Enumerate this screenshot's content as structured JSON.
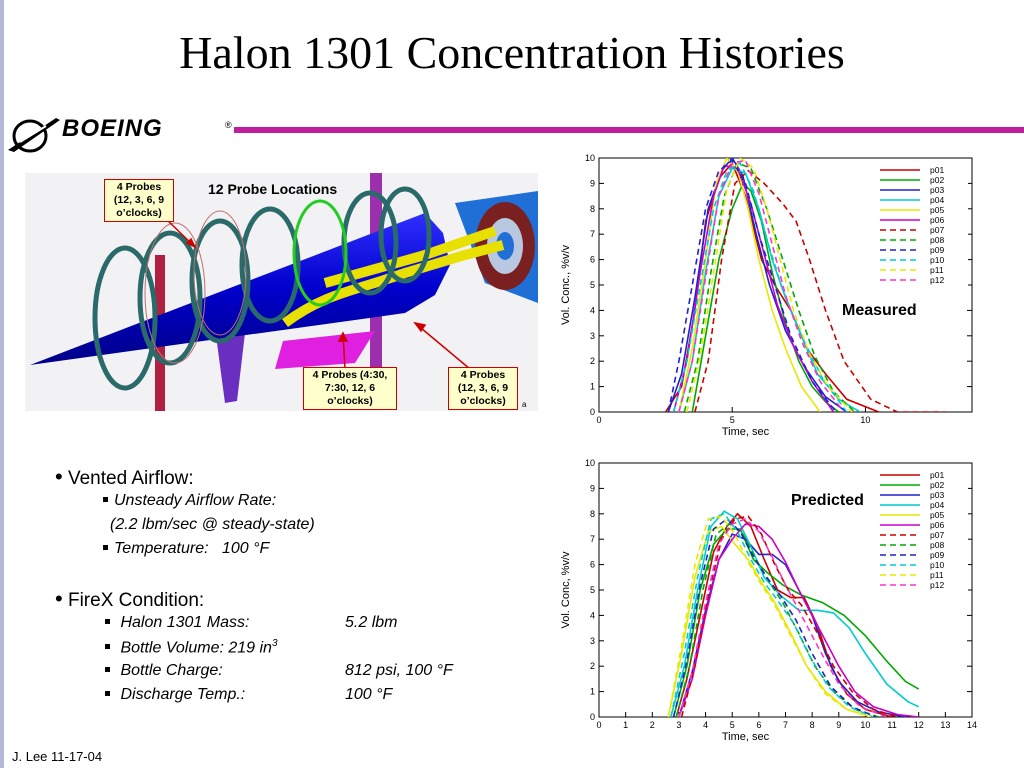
{
  "slide": {
    "title": "Halon 1301 Concentration Histories",
    "logo_text": "BOEING",
    "logo_reg": "®",
    "footer": "J. Lee 11-17-04"
  },
  "probe_figure": {
    "heading": "12 Probe Locations",
    "callouts": [
      "4 Probes (12, 3, 6, 9 o’clocks)",
      "4 Probes (4:30, 7:30, 12, 6 o’clocks)",
      "4 Probes (12, 3, 6, 9 o’clocks)"
    ],
    "corner_mark": "a"
  },
  "bullets": {
    "vented": {
      "label": "Vented Airflow:",
      "rate_label": "Unsteady Airflow Rate:",
      "rate_note": "(2.2 lbm/sec @ steady-state)",
      "temp_label": "Temperature:",
      "temp_value": "100 °F"
    },
    "firex": {
      "label": "FireX Condition:",
      "items": [
        {
          "label": "Halon 1301 Mass:",
          "value": "5.2 lbm"
        },
        {
          "label": "Bottle Volume: 219 in",
          "sup": "3",
          "value": ""
        },
        {
          "label": "Bottle Charge:",
          "value": "812 psi, 100 °F"
        },
        {
          "label": "Discharge Temp.:",
          "value": "100 °F"
        }
      ]
    }
  },
  "chart_data": [
    {
      "type": "line",
      "annotation": "Measured",
      "xlabel": "Time, sec",
      "ylabel": "Vol. Conc., %v/v",
      "xlim": [
        0,
        14
      ],
      "ylim": [
        0,
        10
      ],
      "xticks": [
        0,
        5,
        10
      ],
      "yticks": [
        0,
        1,
        2,
        3,
        4,
        5,
        6,
        7,
        8,
        9,
        10
      ],
      "legend_position": "top-right",
      "series": [
        {
          "name": "p01",
          "color": "#cc0000",
          "dash": "solid",
          "x": [
            2.5,
            3.1,
            3.6,
            4.0,
            4.5,
            5.0,
            5.5,
            6.1,
            6.6,
            7.2,
            7.8,
            8.5,
            9.3,
            10.5
          ],
          "y": [
            0,
            1,
            4,
            7.5,
            9.2,
            9.8,
            8.5,
            6.0,
            5.0,
            4.0,
            2.5,
            1.5,
            0.5,
            0
          ]
        },
        {
          "name": "p02",
          "color": "#00aa00",
          "dash": "solid",
          "x": [
            3.5,
            4.0,
            4.5,
            5.0,
            5.4,
            5.7,
            6.1,
            6.5,
            7.0,
            7.5,
            8.0,
            8.5,
            9.0
          ],
          "y": [
            0,
            3,
            6,
            8,
            9,
            8.7,
            7.5,
            5.5,
            3.5,
            2,
            1,
            0.4,
            0
          ]
        },
        {
          "name": "p03",
          "color": "#2222cc",
          "dash": "solid",
          "x": [
            2.6,
            3.1,
            3.6,
            4.1,
            4.6,
            5.0,
            5.4,
            5.9,
            6.4,
            7.0,
            7.7,
            8.5,
            9.3
          ],
          "y": [
            0,
            1.5,
            4.5,
            8,
            9.5,
            10,
            9.3,
            7,
            5,
            3.2,
            1.8,
            0.6,
            0
          ]
        },
        {
          "name": "p04",
          "color": "#00cccc",
          "dash": "solid",
          "x": [
            3.0,
            3.5,
            4.0,
            4.5,
            5.0,
            5.5,
            6.0,
            6.5,
            7.0,
            7.6,
            8.2,
            9.0,
            9.8
          ],
          "y": [
            0,
            2,
            5.5,
            8.5,
            9.6,
            9.4,
            8,
            6,
            4.5,
            3,
            1.5,
            0.5,
            0
          ]
        },
        {
          "name": "p05",
          "color": "#e8e800",
          "dash": "solid",
          "x": [
            3.0,
            3.5,
            4.0,
            4.4,
            4.8,
            5.2,
            5.6,
            6.0,
            6.5,
            7.0,
            7.6,
            8.3
          ],
          "y": [
            0,
            2.5,
            6,
            9,
            10,
            9.5,
            8,
            6,
            4,
            2.5,
            1,
            0
          ]
        },
        {
          "name": "p06",
          "color": "#cc00cc",
          "dash": "solid",
          "x": [
            2.8,
            3.3,
            3.8,
            4.3,
            4.7,
            5.2,
            5.7,
            6.2,
            6.7,
            7.3,
            8.0,
            8.8
          ],
          "y": [
            0,
            2,
            5.5,
            8.5,
            9.7,
            9.6,
            8.2,
            6.2,
            4.2,
            2.6,
            1.2,
            0
          ]
        },
        {
          "name": "p07",
          "color": "#cc0000",
          "dash": "dashed",
          "x": [
            3.6,
            4.1,
            4.6,
            5.1,
            5.6,
            6.2,
            6.9,
            7.4,
            7.9,
            8.5,
            9.2,
            10.2,
            11.2,
            13.0
          ],
          "y": [
            0,
            2,
            6,
            9,
            9.5,
            9,
            8.2,
            7.5,
            6,
            4,
            2,
            0.5,
            0,
            0
          ]
        },
        {
          "name": "p08",
          "color": "#00aa00",
          "dash": "dashed",
          "x": [
            3.2,
            3.7,
            4.2,
            4.7,
            5.2,
            5.7,
            6.3,
            6.9,
            7.5,
            8.1,
            8.8,
            9.6
          ],
          "y": [
            0,
            2,
            5.5,
            8.5,
            9.8,
            9.6,
            8,
            6,
            4,
            2.2,
            0.8,
            0
          ]
        },
        {
          "name": "p09",
          "color": "#2222cc",
          "dash": "dashed",
          "x": [
            2.6,
            3.0,
            3.5,
            4.0,
            4.5,
            5.0,
            5.5,
            6.0,
            6.6,
            7.2,
            8.0,
            8.9
          ],
          "y": [
            0,
            2,
            5,
            8,
            9.5,
            9.9,
            9,
            7,
            5,
            3,
            1.2,
            0
          ]
        },
        {
          "name": "p10",
          "color": "#00cccc",
          "dash": "dashed",
          "x": [
            2.8,
            3.3,
            3.8,
            4.3,
            4.8,
            5.3,
            5.8,
            6.3,
            6.9,
            7.6,
            8.4,
            9.3
          ],
          "y": [
            0,
            2,
            5,
            8,
            9.5,
            9.8,
            8.7,
            6.8,
            4.8,
            3,
            1.3,
            0
          ]
        },
        {
          "name": "p11",
          "color": "#e8e800",
          "dash": "dashed",
          "x": [
            3.3,
            3.8,
            4.3,
            4.8,
            5.3,
            5.8,
            6.3,
            6.8,
            7.3,
            7.9,
            8.6,
            9.5
          ],
          "y": [
            0,
            2.2,
            5.5,
            8.8,
            10,
            9.6,
            8,
            6,
            4,
            2.3,
            1,
            0
          ]
        },
        {
          "name": "p12",
          "color": "#ff33cc",
          "dash": "dashed",
          "x": [
            3.0,
            3.5,
            4.0,
            4.5,
            5.0,
            5.5,
            6.0,
            6.5,
            7.0,
            7.6,
            8.3,
            9.2
          ],
          "y": [
            0,
            2,
            5.3,
            8.5,
            9.8,
            9.9,
            8.6,
            6.6,
            4.6,
            2.8,
            1.2,
            0
          ]
        }
      ]
    },
    {
      "type": "line",
      "annotation": "Predicted",
      "xlabel": "Time, sec",
      "ylabel": "Vol. Conc, %v/v",
      "xlim": [
        0,
        14
      ],
      "ylim": [
        0,
        10
      ],
      "xticks": [
        0,
        1,
        2,
        3,
        4,
        5,
        6,
        7,
        8,
        9,
        10,
        11,
        12,
        13,
        14
      ],
      "yticks": [
        0,
        1,
        2,
        3,
        4,
        5,
        6,
        7,
        8,
        9,
        10
      ],
      "legend_position": "top-right",
      "series": [
        {
          "name": "p01",
          "color": "#cc0000",
          "dash": "solid",
          "x": [
            2.9,
            3.3,
            3.8,
            4.3,
            4.8,
            5.2,
            5.7,
            6.2,
            6.7,
            7.2,
            7.7,
            8.2,
            8.7,
            9.3,
            10.0,
            11.0
          ],
          "y": [
            0,
            1.5,
            4,
            6.5,
            7.5,
            8,
            7.5,
            6.2,
            5,
            4.7,
            4.7,
            3.6,
            2,
            0.9,
            0.3,
            0
          ]
        },
        {
          "name": "p02",
          "color": "#00aa00",
          "dash": "solid",
          "x": [
            2.8,
            3.3,
            3.8,
            4.3,
            4.8,
            5.3,
            5.8,
            6.3,
            6.9,
            7.6,
            8.4,
            9.2,
            10.0,
            10.8,
            11.5,
            12.0
          ],
          "y": [
            0,
            2,
            5,
            6.8,
            7.4,
            7.4,
            6.2,
            5.7,
            5.2,
            4.8,
            4.5,
            4,
            3.2,
            2.2,
            1.4,
            1.1
          ]
        },
        {
          "name": "p03",
          "color": "#2222cc",
          "dash": "solid",
          "x": [
            3.0,
            3.5,
            4.0,
            4.5,
            5.0,
            5.5,
            6.0,
            6.5,
            7.0,
            7.5,
            8.0,
            8.5,
            9.0,
            9.7,
            10.5,
            11.5
          ],
          "y": [
            0,
            1.8,
            4.2,
            6.2,
            7.2,
            7,
            6.4,
            6.4,
            6,
            5,
            4,
            2.5,
            1.4,
            0.6,
            0.2,
            0
          ]
        },
        {
          "name": "p04",
          "color": "#00cccc",
          "dash": "solid",
          "x": [
            2.7,
            3.2,
            3.7,
            4.2,
            4.7,
            5.2,
            5.7,
            6.2,
            6.8,
            7.5,
            8.2,
            8.8,
            9.4,
            10.0,
            10.8,
            11.6,
            12.0
          ],
          "y": [
            0,
            2,
            5,
            7.5,
            8.1,
            7.8,
            6.7,
            5.5,
            4.8,
            4.2,
            4.2,
            4.1,
            3.5,
            2.5,
            1.3,
            0.6,
            0.4
          ]
        },
        {
          "name": "p05",
          "color": "#e8e800",
          "dash": "solid",
          "x": [
            2.6,
            3.1,
            3.6,
            4.1,
            4.6,
            5.1,
            5.6,
            6.1,
            6.6,
            7.2,
            7.8,
            8.5,
            9.3,
            10.2
          ],
          "y": [
            0,
            2.5,
            5.5,
            7.3,
            7.5,
            6.8,
            6.2,
            5.3,
            4.5,
            3.3,
            2,
            1,
            0.3,
            0
          ]
        },
        {
          "name": "p06",
          "color": "#cc00cc",
          "dash": "solid",
          "x": [
            3.0,
            3.5,
            4.0,
            4.5,
            5.0,
            5.5,
            6.0,
            6.5,
            7.0,
            7.5,
            8.0,
            8.5,
            9.0,
            9.6,
            10.3,
            11.2,
            12.0
          ],
          "y": [
            0,
            1.5,
            4,
            6.2,
            7,
            7.6,
            7.5,
            7,
            6.1,
            5,
            4,
            3,
            2,
            1,
            0.4,
            0.1,
            0
          ]
        },
        {
          "name": "p07",
          "color": "#cc0000",
          "dash": "dashed",
          "x": [
            3.1,
            3.6,
            4.1,
            4.6,
            5.1,
            5.6,
            6.1,
            6.6,
            7.1,
            7.6,
            8.2,
            8.8,
            9.5,
            10.3,
            11.2
          ],
          "y": [
            0,
            2,
            4.8,
            7,
            7.8,
            7.9,
            7.2,
            6,
            5,
            4.4,
            3.3,
            2,
            1,
            0.3,
            0
          ]
        },
        {
          "name": "p08",
          "color": "#00aa00",
          "dash": "dashed",
          "x": [
            2.9,
            3.4,
            3.9,
            4.4,
            4.9,
            5.4,
            5.9,
            6.4,
            6.9,
            7.5,
            8.1,
            8.8,
            9.6,
            10.5
          ],
          "y": [
            0,
            2,
            5,
            7.2,
            7.6,
            7.2,
            6.2,
            5.3,
            4.5,
            3.3,
            2,
            1,
            0.3,
            0
          ]
        },
        {
          "name": "p09",
          "color": "#2222cc",
          "dash": "dashed",
          "x": [
            2.8,
            3.3,
            3.8,
            4.3,
            4.8,
            5.3,
            5.8,
            6.3,
            6.8,
            7.4,
            8.0,
            8.7,
            9.5,
            10.4
          ],
          "y": [
            0,
            2.2,
            5.2,
            7.4,
            7.8,
            7.3,
            6.3,
            5.5,
            4.8,
            3.8,
            2.5,
            1.2,
            0.4,
            0
          ]
        },
        {
          "name": "p10",
          "color": "#00cccc",
          "dash": "dashed",
          "x": [
            2.7,
            3.2,
            3.7,
            4.2,
            4.7,
            5.2,
            5.7,
            6.2,
            6.7,
            7.3,
            7.9,
            8.6,
            9.4,
            10.3
          ],
          "y": [
            0,
            2.5,
            5.5,
            7.8,
            8,
            7.3,
            6.2,
            5.3,
            4.6,
            3.7,
            2.4,
            1.2,
            0.4,
            0
          ]
        },
        {
          "name": "p11",
          "color": "#e8e800",
          "dash": "dashed",
          "x": [
            2.6,
            3.1,
            3.6,
            4.1,
            4.6,
            5.1,
            5.6,
            6.1,
            6.6,
            7.2,
            7.8,
            8.5,
            9.3,
            10.2
          ],
          "y": [
            0,
            2.8,
            6,
            7.8,
            7.9,
            7.2,
            6.1,
            5.2,
            4.4,
            3.2,
            2,
            0.9,
            0.3,
            0
          ]
        },
        {
          "name": "p12",
          "color": "#ff33cc",
          "dash": "dashed",
          "x": [
            3.0,
            3.5,
            4.0,
            4.5,
            5.0,
            5.5,
            6.0,
            6.5,
            7.0,
            7.6,
            8.3,
            9.0,
            9.8,
            10.8
          ],
          "y": [
            0,
            1.8,
            4.5,
            6.8,
            7.6,
            7.8,
            7.3,
            6.3,
            5.2,
            4,
            2.6,
            1.3,
            0.4,
            0
          ]
        }
      ]
    }
  ]
}
